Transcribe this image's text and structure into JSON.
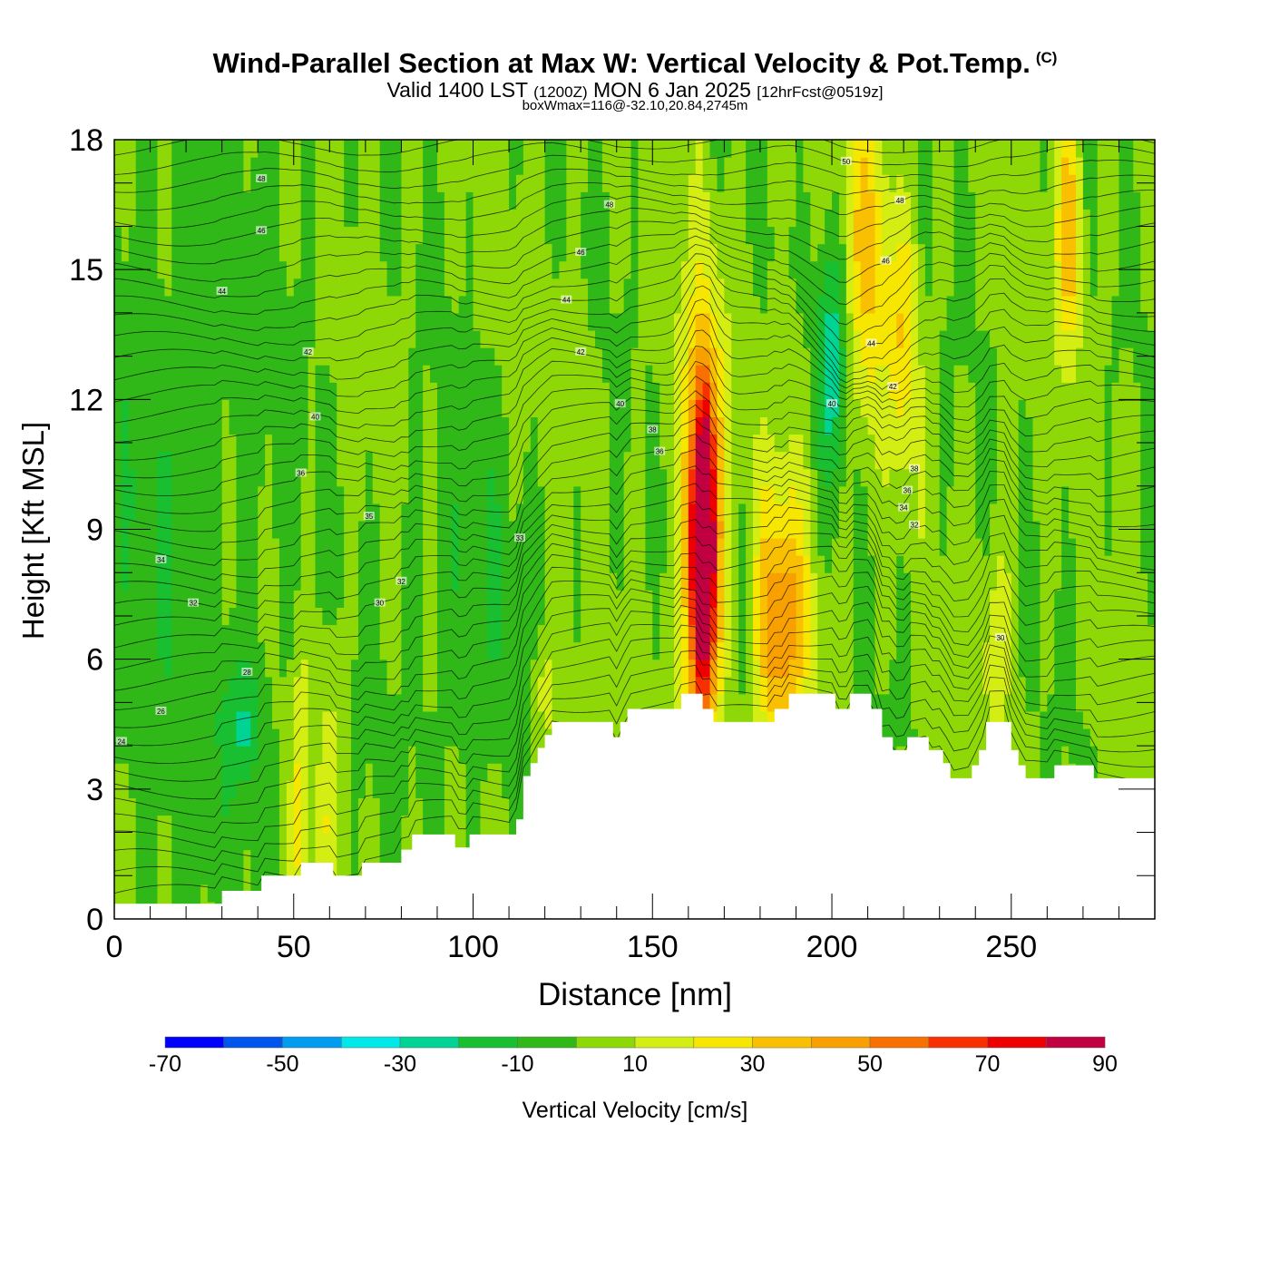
{
  "title": {
    "main": "Wind-Parallel Section at Max W: Vertical Velocity & Pot.Temp.",
    "mark": "(C)",
    "valid_prefix": "Valid 1400 LST",
    "valid_utc": "(1200Z)",
    "valid_date": "MON 6 Jan 2025",
    "forecast": "[12hrFcst@0519z]",
    "box": "boxWmax=116@-32.10,20.84,2745m"
  },
  "chart_data": {
    "type": "heatmap",
    "xlabel": "Distance [nm]",
    "ylabel": "Height [Kft MSL]",
    "xlim": [
      0,
      290
    ],
    "ylim": [
      0,
      18
    ],
    "x_ticks": [
      0,
      50,
      100,
      150,
      200,
      250
    ],
    "y_ticks": [
      0,
      3,
      6,
      9,
      12,
      15,
      18
    ],
    "colorbar": {
      "label": "Vertical Velocity [cm/s]",
      "tick_values": [
        -70,
        -50,
        -30,
        -10,
        10,
        30,
        50,
        70,
        90
      ],
      "bins": [
        {
          "from": -70,
          "to": -60,
          "color": "#0000ff"
        },
        {
          "from": -60,
          "to": -50,
          "color": "#0055ee"
        },
        {
          "from": -50,
          "to": -40,
          "color": "#009cf0"
        },
        {
          "from": -40,
          "to": -30,
          "color": "#00e8e8"
        },
        {
          "from": -30,
          "to": -20,
          "color": "#00d494"
        },
        {
          "from": -20,
          "to": -10,
          "color": "#18bf30"
        },
        {
          "from": -10,
          "to": 0,
          "color": "#30b818"
        },
        {
          "from": 0,
          "to": 10,
          "color": "#8ed808"
        },
        {
          "from": 10,
          "to": 20,
          "color": "#d4ee14"
        },
        {
          "from": 20,
          "to": 30,
          "color": "#f6e600"
        },
        {
          "from": 30,
          "to": 40,
          "color": "#f8c000"
        },
        {
          "from": 40,
          "to": 50,
          "color": "#f8a000"
        },
        {
          "from": 50,
          "to": 60,
          "color": "#f87000"
        },
        {
          "from": 60,
          "to": 70,
          "color": "#f83000"
        },
        {
          "from": 70,
          "to": 80,
          "color": "#ee0000"
        },
        {
          "from": 80,
          "to": 90,
          "color": "#c00040"
        }
      ]
    },
    "terrain_kft": [
      [
        0,
        0.35
      ],
      [
        30,
        0.35
      ],
      [
        30,
        0.65
      ],
      [
        41,
        0.65
      ],
      [
        41,
        1.0
      ],
      [
        52,
        1.0
      ],
      [
        52,
        1.3
      ],
      [
        61,
        1.3
      ],
      [
        61,
        1.0
      ],
      [
        69,
        1.0
      ],
      [
        69,
        1.3
      ],
      [
        80,
        1.3
      ],
      [
        80,
        1.6
      ],
      [
        83,
        1.6
      ],
      [
        83,
        1.95
      ],
      [
        95,
        1.95
      ],
      [
        95,
        1.65
      ],
      [
        99,
        1.65
      ],
      [
        99,
        1.95
      ],
      [
        112,
        1.95
      ],
      [
        112,
        2.3
      ],
      [
        114,
        2.3
      ],
      [
        114,
        3.3
      ],
      [
        116,
        3.3
      ],
      [
        116,
        3.6
      ],
      [
        118,
        3.6
      ],
      [
        118,
        3.95
      ],
      [
        120,
        3.95
      ],
      [
        120,
        4.25
      ],
      [
        122,
        4.25
      ],
      [
        122,
        4.55
      ],
      [
        139,
        4.55
      ],
      [
        139,
        4.2
      ],
      [
        141,
        4.2
      ],
      [
        141,
        4.55
      ],
      [
        143,
        4.55
      ],
      [
        143,
        4.85
      ],
      [
        158,
        4.85
      ],
      [
        158,
        5.2
      ],
      [
        164,
        5.2
      ],
      [
        164,
        4.85
      ],
      [
        167,
        4.85
      ],
      [
        167,
        4.55
      ],
      [
        184,
        4.55
      ],
      [
        184,
        4.85
      ],
      [
        188,
        4.85
      ],
      [
        188,
        5.2
      ],
      [
        201,
        5.2
      ],
      [
        201,
        4.85
      ],
      [
        205,
        4.85
      ],
      [
        205,
        5.2
      ],
      [
        211,
        5.2
      ],
      [
        211,
        4.85
      ],
      [
        214,
        4.85
      ],
      [
        214,
        4.2
      ],
      [
        217,
        4.2
      ],
      [
        217,
        3.9
      ],
      [
        221,
        3.9
      ],
      [
        221,
        4.2
      ],
      [
        227,
        4.2
      ],
      [
        227,
        3.9
      ],
      [
        231,
        3.9
      ],
      [
        231,
        3.6
      ],
      [
        233,
        3.6
      ],
      [
        233,
        3.25
      ],
      [
        239,
        3.25
      ],
      [
        239,
        3.55
      ],
      [
        241,
        3.55
      ],
      [
        241,
        3.9
      ],
      [
        243,
        3.9
      ],
      [
        243,
        4.55
      ],
      [
        250,
        4.55
      ],
      [
        250,
        3.9
      ],
      [
        252,
        3.9
      ],
      [
        252,
        3.55
      ],
      [
        254,
        3.55
      ],
      [
        254,
        3.25
      ],
      [
        262,
        3.25
      ],
      [
        262,
        3.55
      ],
      [
        273,
        3.55
      ],
      [
        273,
        3.25
      ],
      [
        290,
        3.25
      ]
    ],
    "velocity_features": [
      {
        "x": 164,
        "y": 8.5,
        "sx": 2.2,
        "sy": 2.4,
        "w": 108
      },
      {
        "x": 164,
        "y": 8.8,
        "sx": 5,
        "sy": 4,
        "w": 40
      },
      {
        "x": 185,
        "y": 6.8,
        "sx": 5,
        "sy": 1.8,
        "w": 36
      },
      {
        "x": 187,
        "y": 8.0,
        "sx": 7,
        "sy": 3,
        "w": 14
      },
      {
        "x": 176,
        "y": 7.5,
        "sx": 3,
        "sy": 2,
        "w": -16
      },
      {
        "x": 52,
        "y": 2.5,
        "sx": 1.8,
        "sy": 2.5,
        "w": 22
      },
      {
        "x": 60,
        "y": 3.0,
        "sx": 2.5,
        "sy": 2.5,
        "w": 16
      },
      {
        "x": 210,
        "y": 15.5,
        "sx": 4,
        "sy": 2.5,
        "w": 32
      },
      {
        "x": 220,
        "y": 13.5,
        "sx": 3,
        "sy": 2,
        "w": 26
      },
      {
        "x": 266,
        "y": 16.0,
        "sx": 2.5,
        "sy": 2,
        "w": 36
      },
      {
        "x": 246,
        "y": 6.5,
        "sx": 3,
        "sy": 1.5,
        "w": 16
      },
      {
        "x": 120,
        "y": 5.2,
        "sx": 3,
        "sy": 1.0,
        "w": 16
      },
      {
        "x": 200,
        "y": 13.0,
        "sx": 3,
        "sy": 2,
        "w": -30
      },
      {
        "x": 36,
        "y": 4.5,
        "sx": 4,
        "sy": 1.0,
        "w": -20
      },
      {
        "x": 15,
        "y": 9.0,
        "sx": 25,
        "sy": 9,
        "w": -8
      },
      {
        "x": 100,
        "y": 7.0,
        "sx": 12,
        "sy": 3,
        "w": -10
      }
    ],
    "isentrope_labels": [
      {
        "x": 41,
        "y": 17.1,
        "text": "48"
      },
      {
        "x": 138,
        "y": 16.5,
        "text": "48"
      },
      {
        "x": 41,
        "y": 15.9,
        "text": "46"
      },
      {
        "x": 130,
        "y": 15.4,
        "text": "46"
      },
      {
        "x": 30,
        "y": 14.5,
        "text": "44"
      },
      {
        "x": 126,
        "y": 14.3,
        "text": "44"
      },
      {
        "x": 54,
        "y": 13.1,
        "text": "42"
      },
      {
        "x": 130,
        "y": 13.1,
        "text": "42"
      },
      {
        "x": 56,
        "y": 11.6,
        "text": "40"
      },
      {
        "x": 141,
        "y": 11.9,
        "text": "40"
      },
      {
        "x": 150,
        "y": 11.3,
        "text": "38"
      },
      {
        "x": 152,
        "y": 10.8,
        "text": "36"
      },
      {
        "x": 52,
        "y": 10.3,
        "text": "36"
      },
      {
        "x": 71,
        "y": 9.3,
        "text": "35"
      },
      {
        "x": 113,
        "y": 8.8,
        "text": "33"
      },
      {
        "x": 13,
        "y": 8.3,
        "text": "34"
      },
      {
        "x": 80,
        "y": 7.8,
        "text": "32"
      },
      {
        "x": 22,
        "y": 7.3,
        "text": "32"
      },
      {
        "x": 74,
        "y": 7.3,
        "text": "30"
      },
      {
        "x": 37,
        "y": 5.7,
        "text": "28"
      },
      {
        "x": 13,
        "y": 4.8,
        "text": "26"
      },
      {
        "x": 2,
        "y": 4.1,
        "text": "24"
      },
      {
        "x": 204,
        "y": 17.5,
        "text": "50"
      },
      {
        "x": 219,
        "y": 16.6,
        "text": "48"
      },
      {
        "x": 215,
        "y": 15.2,
        "text": "46"
      },
      {
        "x": 211,
        "y": 13.3,
        "text": "44"
      },
      {
        "x": 217,
        "y": 12.3,
        "text": "42"
      },
      {
        "x": 200,
        "y": 11.9,
        "text": "40"
      },
      {
        "x": 223,
        "y": 10.4,
        "text": "38"
      },
      {
        "x": 221,
        "y": 9.9,
        "text": "36"
      },
      {
        "x": 220,
        "y": 9.5,
        "text": "34"
      },
      {
        "x": 223,
        "y": 9.1,
        "text": "32"
      },
      {
        "x": 247,
        "y": 6.5,
        "text": "30"
      }
    ]
  }
}
